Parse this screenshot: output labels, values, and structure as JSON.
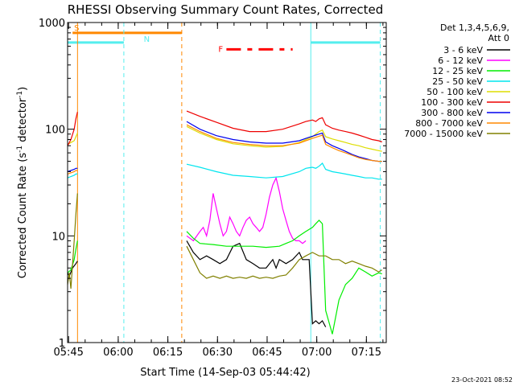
{
  "chart_data": {
    "type": "line",
    "title": "RHESSI Observing Summary Count Rates, Corrected",
    "xlabel": "Start Time (14-Sep-03 05:44:42)",
    "ylabel": "Corrected Count Rate (s",
    "ylabel_sup1": "-1",
    "ylabel_mid": " detector",
    "ylabel_sup2": "-1",
    "ylabel_end": ")",
    "footer": "23-Oct-2021 08:52",
    "y_scale": "log",
    "ylim": [
      1,
      1000
    ],
    "xlim": [
      "05:44:42",
      "07:21:00"
    ],
    "x_tick_labels": [
      "05:45",
      "06:00",
      "06:15",
      "06:30",
      "06:45",
      "07:00",
      "07:15"
    ],
    "x_tick_minutes": [
      0.3,
      15.3,
      30.3,
      45.3,
      60.3,
      75.3,
      90.3
    ],
    "y_tick_labels": [
      "1",
      "10",
      "100",
      "1000"
    ],
    "y_tick_values": [
      1,
      10,
      100,
      1000
    ],
    "legend": {
      "title_line1": "Det 1,3,4,5,6,9,",
      "title_line2": "Att 0",
      "entries": [
        {
          "label": "3 - 6 keV",
          "color": "#000000"
        },
        {
          "label": "6 - 12 keV",
          "color": "#ff00ff"
        },
        {
          "label": "12 - 25 keV",
          "color": "#00ee00"
        },
        {
          "label": "25 - 50 keV",
          "color": "#00e5ee"
        },
        {
          "label": "50 - 100 keV",
          "color": "#dddd00"
        },
        {
          "label": "100 - 300 keV",
          "color": "#ee0000"
        },
        {
          "label": "300 - 800 keV",
          "color": "#0000ee"
        },
        {
          "label": "800 - 7000 keV",
          "color": "#ff8800"
        },
        {
          "label": "7000 - 15000 keV",
          "color": "#808000"
        }
      ]
    },
    "flags": {
      "saa": {
        "label": "S",
        "color": "#ff8800",
        "start": 1.5,
        "end": 34.5,
        "level": 800
      },
      "night": {
        "label": "N",
        "color": "#55eeee",
        "periods": [
          [
            0,
            17.0
          ],
          [
            73.5,
            94.5
          ]
        ],
        "level": 650
      },
      "flare": {
        "label": "F",
        "color": "#ff0000",
        "start": 48.0,
        "end": 68.0,
        "level": 560
      }
    },
    "vertical_markers": [
      {
        "minute": 3.0,
        "color": "#ff8800",
        "style": "solid"
      },
      {
        "minute": 17.0,
        "color": "#55eeee",
        "style": "dashed"
      },
      {
        "minute": 34.5,
        "color": "#ff8800",
        "style": "dashed"
      },
      {
        "minute": 73.5,
        "color": "#55eeee",
        "style": "solid"
      },
      {
        "minute": 94.5,
        "color": "#55eeee",
        "style": "dashed"
      }
    ],
    "series": [
      {
        "name": "3 - 6 keV",
        "color": "#000000",
        "x": [
          0,
          0.5,
          1.5,
          2.5,
          3,
          36,
          38,
          40,
          42,
          44,
          46,
          48,
          50,
          52,
          54,
          56,
          58,
          60,
          62,
          63,
          64,
          66,
          68,
          70,
          71,
          72,
          73,
          74,
          75,
          76,
          77,
          78
        ],
        "y": [
          4.5,
          4.2,
          5.0,
          5.5,
          5.8,
          9,
          7,
          6,
          6.5,
          6,
          5.5,
          6,
          8,
          8.5,
          6,
          5.5,
          5,
          5,
          6,
          5,
          6,
          5.5,
          6,
          7,
          6,
          6,
          6,
          1.5,
          1.6,
          1.5,
          1.6,
          1.4
        ]
      },
      {
        "name": "6 - 12 keV",
        "color": "#ff00ff",
        "x": [
          36,
          38,
          40,
          41,
          42,
          43,
          44,
          45,
          46,
          47,
          48,
          49,
          50,
          51,
          52,
          53,
          54,
          55,
          56,
          57,
          58,
          59,
          60,
          61,
          62,
          63,
          64,
          65,
          66,
          67,
          68,
          69,
          70,
          71,
          72
        ],
        "y": [
          10,
          9,
          11,
          12,
          10,
          14,
          25,
          18,
          13,
          10,
          11,
          15,
          13,
          11,
          10,
          12,
          14,
          15,
          13,
          12,
          11,
          12,
          16,
          23,
          30,
          35,
          26,
          18,
          14,
          11,
          9.5,
          9,
          9,
          8.5,
          9
        ]
      },
      {
        "name": "12 - 25 keV",
        "color": "#00ee00",
        "x": [
          0,
          1,
          2,
          2.5,
          3,
          36,
          38,
          40,
          44,
          48,
          52,
          56,
          60,
          64,
          66,
          68,
          70,
          72,
          73,
          74,
          75,
          76,
          77,
          78,
          80,
          82,
          84,
          86,
          88,
          90,
          92,
          94,
          95
        ],
        "y": [
          4.5,
          4.8,
          6.0,
          7.5,
          9,
          11,
          9.5,
          8.5,
          8.3,
          8.0,
          8.0,
          8.0,
          7.8,
          8.0,
          8.5,
          9,
          10,
          11,
          11.5,
          12,
          13,
          14,
          13,
          2,
          1.2,
          2.5,
          3.5,
          4,
          5,
          4.6,
          4.2,
          4.5,
          4.4
        ]
      },
      {
        "name": "25 - 50 keV",
        "color": "#00e5ee",
        "x": [
          0,
          1,
          2,
          2.5,
          3,
          36,
          40,
          45,
          50,
          55,
          60,
          65,
          70,
          72,
          74,
          75,
          76,
          77,
          78,
          80,
          82,
          84,
          86,
          88,
          90,
          92,
          94,
          95
        ],
        "y": [
          35,
          36,
          37,
          38,
          38,
          47,
          44,
          40,
          37,
          36,
          35,
          36,
          40,
          43,
          44,
          43,
          45,
          48,
          42,
          40,
          39,
          38,
          37,
          36,
          35,
          35,
          34,
          34
        ]
      },
      {
        "name": "50 - 100 keV",
        "color": "#dddd00",
        "x": [
          0,
          1,
          2,
          2.5,
          3,
          36,
          40,
          45,
          50,
          55,
          60,
          65,
          70,
          72,
          74,
          75,
          76,
          77,
          78,
          80,
          82,
          84,
          86,
          88,
          90,
          92,
          94,
          95
        ],
        "y": [
          72,
          75,
          78,
          85,
          92,
          106,
          92,
          80,
          73,
          70,
          68,
          69,
          75,
          80,
          85,
          90,
          95,
          98,
          85,
          81,
          78,
          75,
          72,
          70,
          67,
          65,
          63,
          62
        ]
      },
      {
        "name": "100 - 300 keV",
        "color": "#ee0000",
        "x": [
          0,
          1,
          2,
          2.5,
          3,
          36,
          40,
          45,
          50,
          55,
          60,
          65,
          70,
          72,
          74,
          75,
          76,
          77,
          78,
          80,
          82,
          84,
          86,
          88,
          90,
          92,
          94,
          95
        ],
        "y": [
          70,
          80,
          100,
          125,
          145,
          148,
          132,
          116,
          102,
          95,
          95,
          100,
          112,
          118,
          122,
          118,
          125,
          128,
          110,
          102,
          98,
          95,
          92,
          88,
          84,
          80,
          78,
          76
        ]
      },
      {
        "name": "300 - 800 keV",
        "color": "#0000ee",
        "x": [
          0,
          1,
          2,
          2.5,
          3,
          36,
          40,
          45,
          50,
          55,
          60,
          65,
          70,
          72,
          74,
          75,
          76,
          77,
          78,
          80,
          82,
          84,
          86,
          88,
          90,
          92,
          94,
          95
        ],
        "y": [
          40,
          41,
          42,
          43,
          43,
          118,
          100,
          87,
          80,
          76,
          74,
          74,
          78,
          82,
          86,
          88,
          90,
          92,
          76,
          70,
          66,
          62,
          58,
          55,
          53,
          51,
          50,
          50
        ]
      },
      {
        "name": "800 - 7000 keV",
        "color": "#ff8800",
        "x": [
          0,
          1,
          2,
          2.5,
          3,
          36,
          40,
          45,
          50,
          55,
          60,
          65,
          70,
          72,
          74,
          75,
          76,
          77,
          78,
          80,
          82,
          84,
          86,
          88,
          90,
          92,
          94,
          95
        ],
        "y": [
          38,
          39,
          40,
          41,
          41,
          110,
          95,
          82,
          75,
          72,
          70,
          70,
          74,
          78,
          82,
          84,
          86,
          88,
          72,
          67,
          63,
          60,
          57,
          54,
          52,
          51,
          50,
          50
        ]
      },
      {
        "name": "7000 - 15000 keV",
        "color": "#808000",
        "x": [
          0,
          0.5,
          1,
          1.5,
          2,
          2.5,
          3,
          36,
          38,
          40,
          42,
          44,
          46,
          48,
          50,
          52,
          54,
          56,
          58,
          60,
          62,
          64,
          66,
          68,
          70,
          72,
          74,
          76,
          78,
          80,
          82,
          84,
          86,
          88,
          90,
          92,
          94,
          95
        ],
        "y": [
          3.5,
          4.5,
          3.2,
          5.5,
          9,
          16,
          25,
          8,
          6,
          4.5,
          4.0,
          4.2,
          4.0,
          4.2,
          4.0,
          4.1,
          4.0,
          4.2,
          4.0,
          4.1,
          4.0,
          4.2,
          4.3,
          5,
          6,
          6.5,
          7,
          6.5,
          6.5,
          6,
          6,
          5.5,
          5.8,
          5.5,
          5.2,
          5,
          4.6,
          4.8
        ]
      }
    ]
  }
}
